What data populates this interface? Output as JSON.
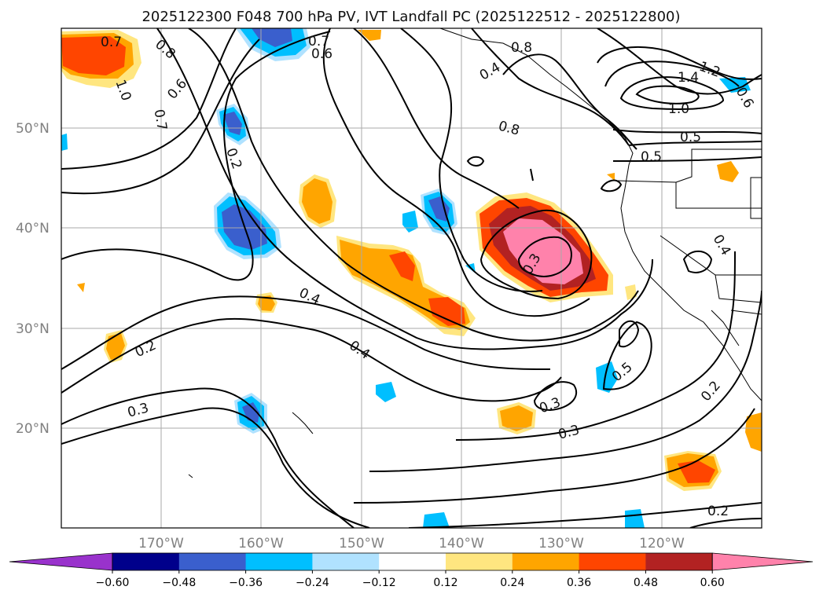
{
  "map": {
    "title": "2025122300 F048 700 hPa PV, IVT Landfall PC (2025122512 - 2025122800)",
    "lat_labels": [
      "50°N",
      "40°N",
      "30°N",
      "20°N"
    ],
    "lon_labels": [
      "170°W",
      "160°W",
      "150°W",
      "140°W",
      "130°W",
      "120°W"
    ],
    "contour_labels": [
      "0.7",
      "0.8",
      "1.0",
      "0.6",
      "0.7",
      "0.2",
      "0.7",
      "0.6",
      "0.8",
      "0.4",
      "0.8",
      "1.2",
      "1.4",
      "1.0",
      "0.6",
      "0.5",
      "0.5",
      "0.3",
      "0.4",
      "0.4",
      "0.2",
      "0.3",
      "0.5",
      "0.3",
      "0.3",
      "0.2",
      "0.2",
      "0.4"
    ]
  },
  "colorbar": {
    "tick_labels": [
      "−0.60",
      "−0.48",
      "−0.36",
      "−0.24",
      "−0.12",
      "0.12",
      "0.24",
      "0.36",
      "0.48",
      "0.60"
    ],
    "colors": [
      "#9932cc",
      "#00008b",
      "#3a5fcd",
      "#00bfff",
      "#b0e2ff",
      "#ffffff",
      "#ffe680",
      "#ffa500",
      "#ff4500",
      "#b22222",
      "#ff82ab"
    ]
  },
  "shading_levels": {
    "neg_light": "#b0e2ff",
    "neg_mid": "#00bfff",
    "neg_dark": "#3a5fcd",
    "pos_light": "#ffe680",
    "pos_mid": "#ffa500",
    "pos_dark": "#ff4500",
    "pos_darker": "#b22222",
    "pos_max": "#ff82ab"
  }
}
